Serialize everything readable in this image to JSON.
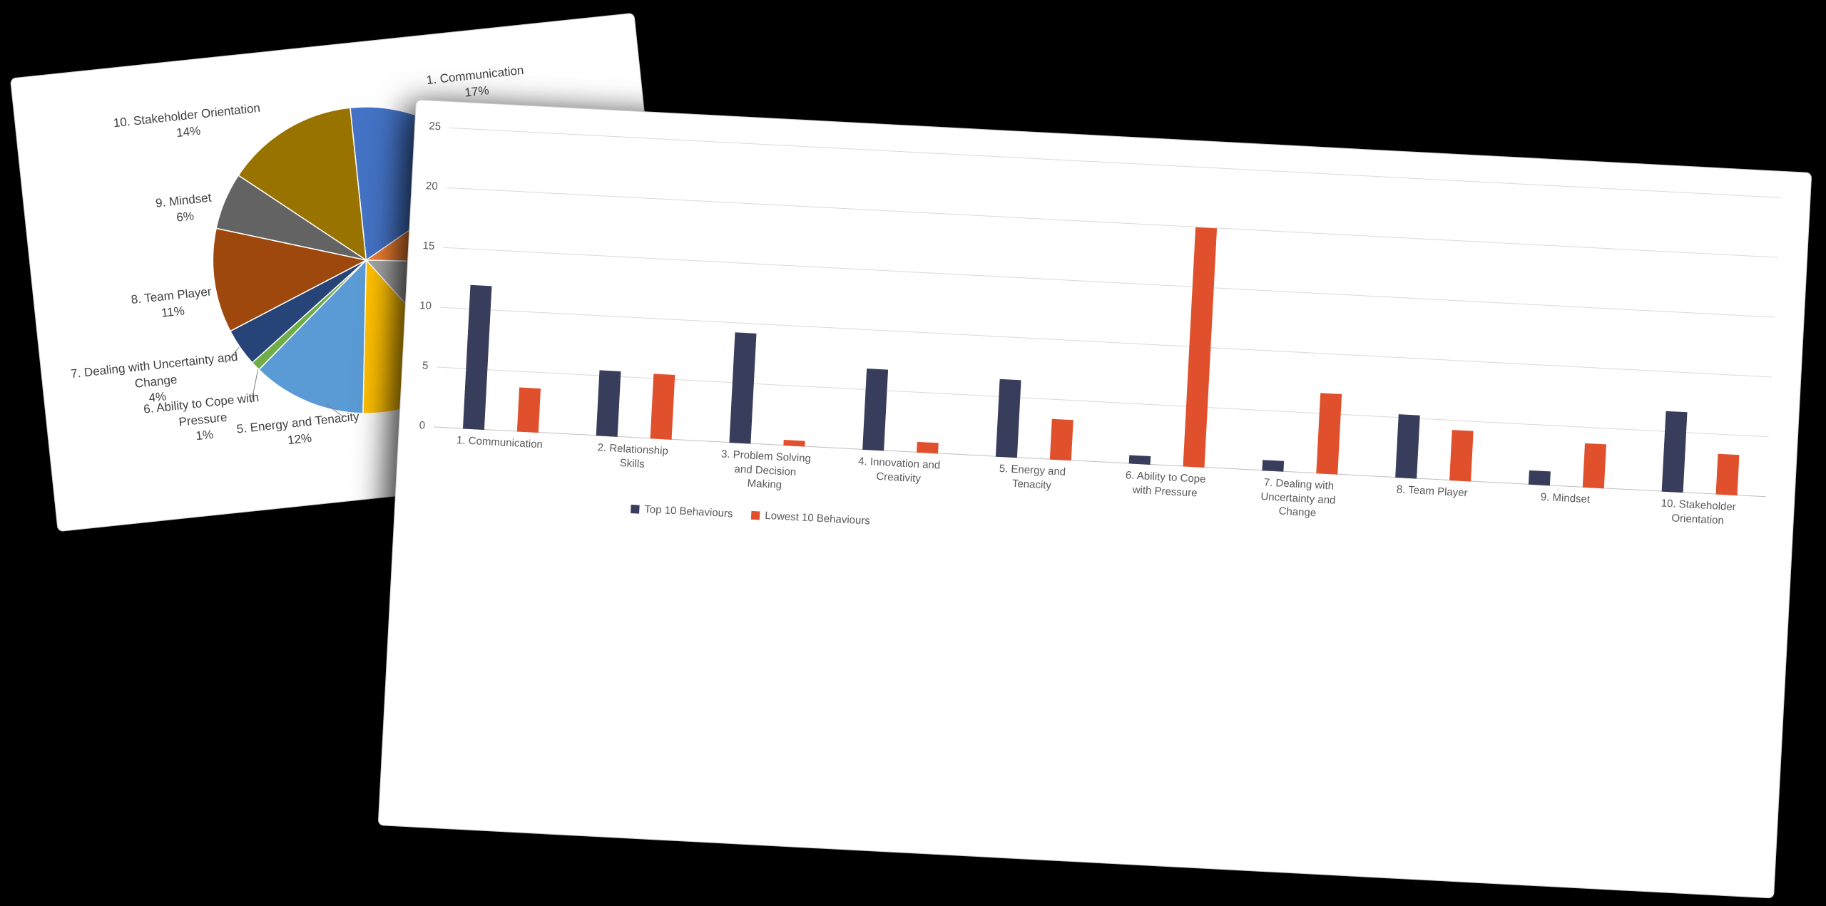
{
  "scene": {
    "description": "Two overlapping white chart pages on a black background"
  },
  "chart_data": [
    {
      "type": "pie",
      "name": "behaviours-share-pie",
      "title": "",
      "slices": [
        {
          "label": "1. Communication",
          "pct": 17,
          "pct_label": "17%",
          "color": "#4472C4",
          "label_visible": true
        },
        {
          "label": "2. Relationship Skills",
          "pct": 10,
          "color": "#ED7D31",
          "label_visible": false,
          "pct_estimated": true
        },
        {
          "label": "3. Problem Solving and Decision Making",
          "pct": 13,
          "color": "#A5A5A5",
          "label_visible": false,
          "pct_estimated": true
        },
        {
          "label": "4. Innovation and Creativity",
          "pct": 12,
          "color": "#FFC000",
          "label_visible": false,
          "pct_estimated": true
        },
        {
          "label": "5. Energy and Tenacity",
          "pct": 12,
          "pct_label": "12%",
          "color": "#5B9BD5",
          "label_visible": true
        },
        {
          "label": "6. Ability to Cope with Pressure",
          "pct": 1,
          "pct_label": "1%",
          "color": "#70AD47",
          "label_visible": true
        },
        {
          "label": "7. Dealing with Uncertainty and Change",
          "pct": 4,
          "pct_label": "4%",
          "color": "#264478",
          "label_visible": true
        },
        {
          "label": "8. Team Player",
          "pct": 11,
          "pct_label": "11%",
          "color": "#9E480E",
          "label_visible": true
        },
        {
          "label": "9. Mindset",
          "pct": 6,
          "pct_label": "6%",
          "color": "#636363",
          "label_visible": true
        },
        {
          "label": "10. Stakeholder Orientation",
          "pct": 14,
          "pct_label": "14%",
          "color": "#997300",
          "label_visible": true
        }
      ]
    },
    {
      "type": "bar",
      "name": "top-vs-lowest-behaviours-bar",
      "title": "",
      "categories": [
        "1. Communication",
        "2. Relationship Skills",
        "3. Problem Solving and Decision Making",
        "4. Innovation and Creativity",
        "5. Energy and Tenacity",
        "6. Ability to Cope with Pressure",
        "7. Dealing with Uncertainty and Change",
        "8. Team Player",
        "9. Mindset",
        "10. Stakeholder Orientation"
      ],
      "series": [
        {
          "name": "Top 10 Behaviours",
          "color": "#383D5C",
          "values": [
            12,
            5.5,
            9.2,
            6.8,
            6.5,
            0.7,
            0.9,
            5.3,
            1.2,
            6.7
          ]
        },
        {
          "name": "Lowest 10 Behaviours",
          "color": "#E0502D",
          "values": [
            3.7,
            5.4,
            0.5,
            0.9,
            3.4,
            20,
            6.7,
            4.2,
            3.7,
            3.4
          ]
        }
      ],
      "ylim": [
        0,
        25
      ],
      "ytick_labels": [
        "0",
        "5",
        "10",
        "15",
        "20",
        "25"
      ],
      "grid": true,
      "legend_position": "bottom"
    }
  ]
}
